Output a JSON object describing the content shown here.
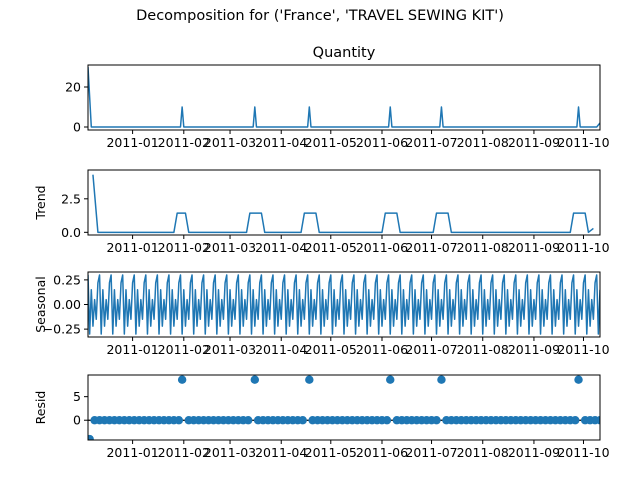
{
  "suptitle": "Decomposition for ('France', 'TRAVEL SEWING KIT')",
  "colors": {
    "line": "#1f77b4",
    "axis": "#000000",
    "background": "#ffffff"
  },
  "chart_data": [
    {
      "type": "line",
      "title": "Quantity",
      "ylabel": "",
      "ylim": [
        -1.5,
        31
      ],
      "yticks": [
        0,
        20
      ],
      "xlim": [
        "2010-12-05",
        "2011-10-11"
      ],
      "xticks": [
        "2011-01",
        "2011-02",
        "2011-03",
        "2011-04",
        "2011-05",
        "2011-06",
        "2011-07",
        "2011-08",
        "2011-09",
        "2011-10"
      ],
      "x": [
        "2010-12-05",
        "2010-12-07",
        "2010-12-08",
        "2011-01-30",
        "2011-01-31",
        "2011-02-01",
        "2011-03-15",
        "2011-03-16",
        "2011-03-17",
        "2011-04-17",
        "2011-04-18",
        "2011-04-19",
        "2011-06-05",
        "2011-06-06",
        "2011-06-07",
        "2011-07-06",
        "2011-07-07",
        "2011-07-08",
        "2011-09-27",
        "2011-09-28",
        "2011-09-29",
        "2011-10-09",
        "2011-10-11"
      ],
      "y": [
        30,
        0,
        0,
        0,
        10,
        0,
        0,
        10,
        0,
        0,
        10,
        0,
        0,
        10,
        0,
        0,
        10,
        0,
        0,
        10,
        0,
        0,
        2
      ]
    },
    {
      "type": "line",
      "title": "",
      "ylabel": "Trend",
      "ylim": [
        -0.2,
        4.65
      ],
      "yticks": [
        0.0,
        2.5
      ],
      "ytick_labels": [
        "0.0",
        "2.5"
      ],
      "xlim": [
        "2010-12-05",
        "2011-10-11"
      ],
      "xticks": [
        "2011-01",
        "2011-02",
        "2011-03",
        "2011-04",
        "2011-05",
        "2011-06",
        "2011-07",
        "2011-08",
        "2011-09",
        "2011-10"
      ],
      "x": [
        "2010-12-08",
        "2010-12-11",
        "2011-01-26",
        "2011-01-28",
        "2011-02-02",
        "2011-02-04",
        "2011-03-11",
        "2011-03-13",
        "2011-03-20",
        "2011-03-22",
        "2011-04-13",
        "2011-04-15",
        "2011-04-22",
        "2011-04-24",
        "2011-06-01",
        "2011-06-03",
        "2011-06-10",
        "2011-06-12",
        "2011-07-02",
        "2011-07-04",
        "2011-07-11",
        "2011-07-13",
        "2011-09-23",
        "2011-09-25",
        "2011-10-02",
        "2011-10-04",
        "2011-10-07"
      ],
      "y": [
        4.3,
        0,
        0,
        1.43,
        1.43,
        0,
        0,
        1.43,
        1.43,
        0,
        0,
        1.43,
        1.43,
        0,
        0,
        1.43,
        1.43,
        0,
        0,
        1.43,
        1.43,
        0,
        0,
        1.43,
        1.43,
        0,
        0.29
      ]
    },
    {
      "type": "line",
      "title": "",
      "ylabel": "Seasonal",
      "ylim": [
        -0.33,
        0.33
      ],
      "yticks": [
        0.25,
        0.0,
        -0.25
      ],
      "ytick_labels": [
        "0.25",
        "0.00",
        "−0.25"
      ],
      "xlim": [
        "2010-12-05",
        "2011-10-11"
      ],
      "xticks": [
        "2011-01",
        "2011-02",
        "2011-03",
        "2011-04",
        "2011-05",
        "2011-06",
        "2011-07",
        "2011-08",
        "2011-09",
        "2011-10"
      ],
      "start": "2010-12-05",
      "end": "2011-10-11",
      "period_days": 7,
      "pattern": [
        0.3,
        -0.3,
        0.15,
        -0.22,
        0.05,
        -0.15,
        0.22
      ]
    },
    {
      "type": "scatter",
      "title": "",
      "ylabel": "Resid",
      "ylim": [
        -4.2,
        9.6
      ],
      "yticks": [
        0,
        5
      ],
      "zero_line": true,
      "xlim": [
        "2010-12-05",
        "2011-10-11"
      ],
      "xticks": [
        "2011-01",
        "2011-02",
        "2011-03",
        "2011-04",
        "2011-05",
        "2011-06",
        "2011-07",
        "2011-08",
        "2011-09",
        "2011-10"
      ],
      "start": "2010-12-05",
      "end": "2011-10-11",
      "step_days": 3,
      "outliers": [
        {
          "x": "2010-12-06",
          "y": -4.0
        },
        {
          "x": "2011-01-31",
          "y": 8.6
        },
        {
          "x": "2011-03-16",
          "y": 8.6
        },
        {
          "x": "2011-04-18",
          "y": 8.6
        },
        {
          "x": "2011-06-06",
          "y": 8.6
        },
        {
          "x": "2011-07-07",
          "y": 8.6
        },
        {
          "x": "2011-09-28",
          "y": 8.6
        }
      ]
    }
  ]
}
